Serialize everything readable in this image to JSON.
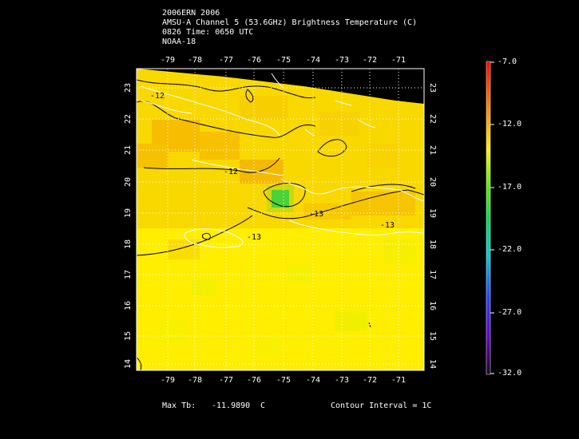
{
  "title": {
    "line1": "2006ERN 2006",
    "line2": "AMSU-A Channel 5 (53.6GHz) Brightness Temperature (C)",
    "line3": "0826 Time: 0650 UTC",
    "line4": "NOAA-18"
  },
  "map": {
    "lon_ticks": [
      "-79",
      "-78",
      "-77",
      "-76",
      "-75",
      "-74",
      "-73",
      "-72",
      "-71"
    ],
    "lat_ticks": [
      "23",
      "22",
      "21",
      "20",
      "19",
      "18",
      "17",
      "16",
      "15",
      "14"
    ],
    "lon_range": [
      -80,
      -70
    ],
    "lat_range": [
      13.8,
      23.6
    ],
    "contour_labels": [
      "-12",
      "-12",
      "-13",
      "-13",
      "-13"
    ]
  },
  "colorbar": {
    "labels": [
      "-7.0",
      "-12.0",
      "-17.0",
      "-22.0",
      "-27.0",
      "-32.0"
    ],
    "min": -32.0,
    "max": -7.0
  },
  "footer": {
    "max_label": "Max Tb:",
    "max_value": "-11.9890",
    "max_unit": "C",
    "contour_interval": "Contour Interval = 1C"
  },
  "colors": {
    "background": "#000000",
    "field_base": "#ffee00",
    "warm_band": "#f7b000",
    "cold_spot": "#22cc44",
    "coastline": "#ffffff"
  }
}
